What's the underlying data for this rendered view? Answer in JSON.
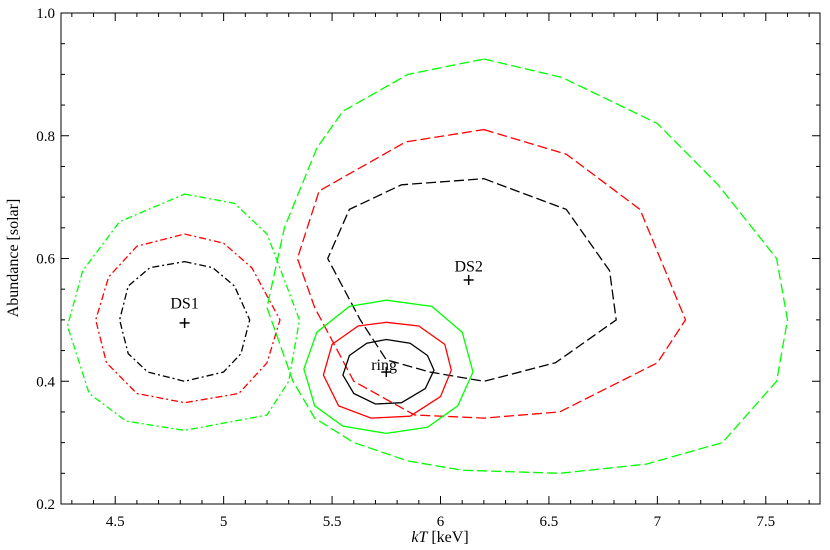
{
  "chart_data": {
    "type": "line",
    "title": "",
    "xlabel_italic": "kT",
    "xlabel_unit": " [keV]",
    "ylabel": "Abundance [solar]",
    "xlim": [
      4.25,
      7.75
    ],
    "ylim": [
      0.2,
      1.0
    ],
    "x_ticks": [
      4.5,
      5,
      5.5,
      6,
      6.5,
      7,
      7.5
    ],
    "x_tick_labels": [
      "4.5",
      "5",
      "5.5",
      "6",
      "6.5",
      "7",
      "7.5"
    ],
    "y_ticks": [
      0.2,
      0.4,
      0.6,
      0.8,
      1.0
    ],
    "y_tick_labels": [
      "0.2",
      "0.4",
      "0.6",
      "0.8",
      "1.0"
    ],
    "colors": {
      "inner": "#000000",
      "middle": "#ff0000",
      "outer": "#00ff00"
    },
    "regions": [
      {
        "label": "DS1",
        "best_fit": [
          4.82,
          0.495
        ],
        "label_pos": [
          4.82,
          0.525
        ],
        "style": "dash-dot",
        "contours": [
          {
            "color": "#000000",
            "points": [
              [
                4.82,
                0.595
              ],
              [
                4.95,
                0.585
              ],
              [
                5.05,
                0.555
              ],
              [
                5.12,
                0.5
              ],
              [
                5.08,
                0.445
              ],
              [
                5.0,
                0.415
              ],
              [
                4.82,
                0.4
              ],
              [
                4.65,
                0.415
              ],
              [
                4.56,
                0.445
              ],
              [
                4.52,
                0.5
              ],
              [
                4.56,
                0.555
              ],
              [
                4.66,
                0.585
              ]
            ]
          },
          {
            "color": "#ff0000",
            "points": [
              [
                4.82,
                0.64
              ],
              [
                5.0,
                0.625
              ],
              [
                5.13,
                0.585
              ],
              [
                5.26,
                0.5
              ],
              [
                5.2,
                0.43
              ],
              [
                5.07,
                0.38
              ],
              [
                4.82,
                0.365
              ],
              [
                4.6,
                0.38
              ],
              [
                4.46,
                0.43
              ],
              [
                4.41,
                0.5
              ],
              [
                4.47,
                0.57
              ],
              [
                4.6,
                0.62
              ]
            ]
          },
          {
            "color": "#00ff00",
            "points": [
              [
                4.82,
                0.705
              ],
              [
                5.05,
                0.69
              ],
              [
                5.2,
                0.64
              ],
              [
                5.35,
                0.5
              ],
              [
                5.3,
                0.4
              ],
              [
                5.2,
                0.345
              ],
              [
                4.82,
                0.32
              ],
              [
                4.55,
                0.335
              ],
              [
                4.38,
                0.38
              ],
              [
                4.28,
                0.49
              ],
              [
                4.35,
                0.58
              ],
              [
                4.52,
                0.66
              ]
            ]
          }
        ]
      },
      {
        "label": "DS2",
        "best_fit": [
          6.13,
          0.565
        ],
        "label_pos": [
          6.13,
          0.585
        ],
        "style": "dash",
        "contours": [
          {
            "color": "#000000",
            "points": [
              [
                6.2,
                0.73
              ],
              [
                6.58,
                0.68
              ],
              [
                6.78,
                0.58
              ],
              [
                6.81,
                0.5
              ],
              [
                6.53,
                0.43
              ],
              [
                6.2,
                0.4
              ],
              [
                5.95,
                0.415
              ],
              [
                5.75,
                0.435
              ],
              [
                5.63,
                0.5
              ],
              [
                5.48,
                0.6
              ],
              [
                5.58,
                0.68
              ],
              [
                5.82,
                0.72
              ]
            ]
          },
          {
            "color": "#ff0000",
            "points": [
              [
                6.2,
                0.81
              ],
              [
                6.58,
                0.77
              ],
              [
                6.92,
                0.68
              ],
              [
                7.13,
                0.5
              ],
              [
                7.0,
                0.43
              ],
              [
                6.55,
                0.35
              ],
              [
                6.2,
                0.34
              ],
              [
                5.88,
                0.345
              ],
              [
                5.6,
                0.4
              ],
              [
                5.42,
                0.52
              ],
              [
                5.34,
                0.6
              ],
              [
                5.44,
                0.71
              ],
              [
                5.84,
                0.79
              ]
            ]
          },
          {
            "color": "#00ff00",
            "points": [
              [
                6.2,
                0.925
              ],
              [
                6.56,
                0.895
              ],
              [
                7.0,
                0.82
              ],
              [
                7.28,
                0.72
              ],
              [
                7.55,
                0.6
              ],
              [
                7.6,
                0.5
              ],
              [
                7.55,
                0.4
              ],
              [
                7.3,
                0.3
              ],
              [
                6.95,
                0.265
              ],
              [
                6.55,
                0.25
              ],
              [
                6.1,
                0.255
              ],
              [
                5.85,
                0.27
              ],
              [
                5.6,
                0.3
              ],
              [
                5.42,
                0.34
              ],
              [
                5.32,
                0.4
              ],
              [
                5.2,
                0.52
              ],
              [
                5.28,
                0.65
              ],
              [
                5.43,
                0.78
              ],
              [
                5.55,
                0.84
              ],
              [
                5.85,
                0.9
              ]
            ]
          }
        ]
      },
      {
        "label": "ring",
        "best_fit": [
          5.75,
          0.415
        ],
        "label_pos": [
          5.74,
          0.425
        ],
        "style": "solid",
        "contours": [
          {
            "color": "#000000",
            "points": [
              [
                5.75,
                0.468
              ],
              [
                5.86,
                0.462
              ],
              [
                5.94,
                0.442
              ],
              [
                5.97,
                0.418
              ],
              [
                5.93,
                0.388
              ],
              [
                5.82,
                0.365
              ],
              [
                5.7,
                0.363
              ],
              [
                5.6,
                0.38
              ],
              [
                5.55,
                0.41
              ],
              [
                5.58,
                0.442
              ],
              [
                5.66,
                0.462
              ]
            ]
          },
          {
            "color": "#ff0000",
            "points": [
              [
                5.75,
                0.496
              ],
              [
                5.9,
                0.49
              ],
              [
                6.02,
                0.46
              ],
              [
                6.05,
                0.418
              ],
              [
                6.0,
                0.375
              ],
              [
                5.86,
                0.343
              ],
              [
                5.68,
                0.34
              ],
              [
                5.53,
                0.36
              ],
              [
                5.46,
                0.41
              ],
              [
                5.5,
                0.46
              ],
              [
                5.62,
                0.49
              ]
            ]
          },
          {
            "color": "#00ff00",
            "points": [
              [
                5.75,
                0.532
              ],
              [
                5.96,
                0.522
              ],
              [
                6.1,
                0.48
              ],
              [
                6.15,
                0.415
              ],
              [
                6.08,
                0.36
              ],
              [
                5.94,
                0.325
              ],
              [
                5.75,
                0.315
              ],
              [
                5.55,
                0.327
              ],
              [
                5.42,
                0.36
              ],
              [
                5.37,
                0.42
              ],
              [
                5.43,
                0.48
              ],
              [
                5.58,
                0.522
              ]
            ]
          }
        ]
      }
    ]
  }
}
